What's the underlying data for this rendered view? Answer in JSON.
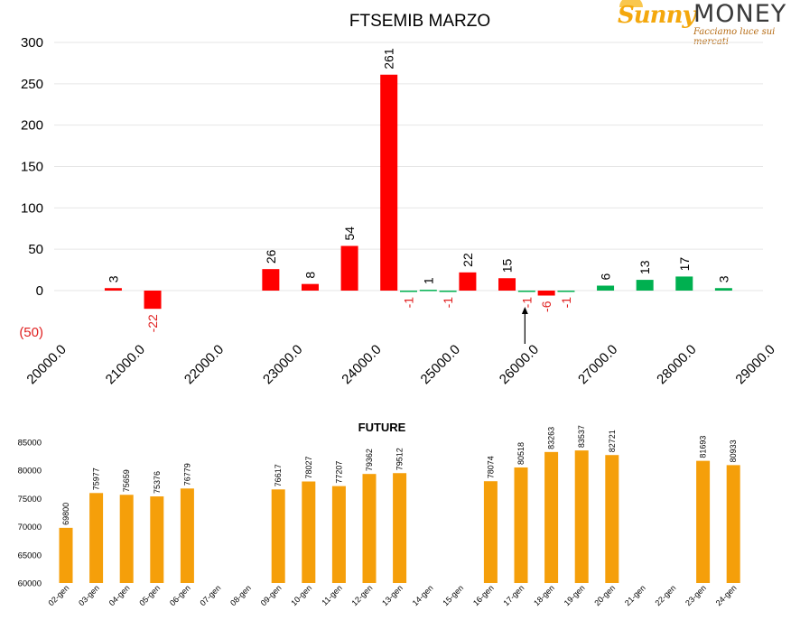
{
  "logo": {
    "brand_left": "Sunny",
    "brand_right": "MONEY",
    "tagline": "Facciamo luce sui mercati"
  },
  "colors": {
    "call": "#ff0000",
    "put": "#00b050",
    "future": "#f59f0a",
    "negative_label": "#e02020",
    "text": "#000000",
    "grid": "#e6e6e6"
  },
  "chart_data": [
    {
      "type": "bar",
      "title": "FTSEMIB MARZO",
      "ylim": [
        -50,
        300
      ],
      "yticks": [
        "300",
        "250",
        "200",
        "150",
        "100",
        "50",
        "0",
        "(50)"
      ],
      "yticks_values": [
        300,
        250,
        200,
        150,
        100,
        50,
        0,
        -50
      ],
      "xlim": [
        20000,
        29000
      ],
      "xticks": [
        "20000.0",
        "21000.0",
        "22000.0",
        "23000.0",
        "24000.0",
        "25000.0",
        "26000.0",
        "27000.0",
        "28000.0",
        "29000.0"
      ],
      "xticks_values": [
        20000,
        21000,
        22000,
        23000,
        24000,
        25000,
        26000,
        27000,
        28000,
        29000
      ],
      "grid": true,
      "marker": {
        "x": 26000,
        "type": "arrow-up"
      },
      "series": [
        {
          "color": "red",
          "points": [
            {
              "strike": 20750,
              "value": 3
            },
            {
              "strike": 21250,
              "value": -22
            },
            {
              "strike": 22750,
              "value": 26
            },
            {
              "strike": 23250,
              "value": 8
            },
            {
              "strike": 23750,
              "value": 54
            },
            {
              "strike": 24250,
              "value": 261
            },
            {
              "strike": 25250,
              "value": 22
            },
            {
              "strike": 25750,
              "value": 15
            },
            {
              "strike": 26250,
              "value": -6
            }
          ]
        },
        {
          "color": "green",
          "points": [
            {
              "strike": 24500,
              "value": -1
            },
            {
              "strike": 24750,
              "value": 1
            },
            {
              "strike": 25000,
              "value": -1
            },
            {
              "strike": 26000,
              "value": -1
            },
            {
              "strike": 26500,
              "value": -1
            },
            {
              "strike": 27000,
              "value": 6
            },
            {
              "strike": 27500,
              "value": 13
            },
            {
              "strike": 28000,
              "value": 17
            },
            {
              "strike": 28500,
              "value": 3
            }
          ]
        }
      ]
    },
    {
      "type": "bar",
      "title": "FUTURE",
      "ylim": [
        60000,
        85000
      ],
      "yticks": [
        "85000",
        "80000",
        "75000",
        "70000",
        "65000",
        "60000"
      ],
      "yticks_values": [
        85000,
        80000,
        75000,
        70000,
        65000,
        60000
      ],
      "categories": [
        "02-gen",
        "03-gen",
        "04-gen",
        "05-gen",
        "06-gen",
        "07-gen",
        "08-gen",
        "09-gen",
        "10-gen",
        "11-gen",
        "12-gen",
        "13-gen",
        "14-gen",
        "15-gen",
        "16-gen",
        "17-gen",
        "18-gen",
        "19-gen",
        "20-gen",
        "21-gen",
        "22-gen",
        "23-gen",
        "24-gen"
      ],
      "values": [
        69800,
        75977,
        75659,
        75376,
        76779,
        null,
        null,
        76617,
        78027,
        77207,
        79362,
        79512,
        null,
        null,
        78074,
        80518,
        83263,
        83537,
        82721,
        null,
        null,
        81693,
        80933
      ],
      "value_labels": [
        "69800",
        "75977",
        "75659",
        "75376",
        "76779",
        "",
        "",
        "76617",
        "78027",
        "77207",
        "79362",
        "79512",
        "",
        "",
        "78074",
        "80518",
        "83263",
        "83537",
        "82721",
        "",
        "",
        "81693",
        "80933"
      ],
      "grid": false
    }
  ]
}
